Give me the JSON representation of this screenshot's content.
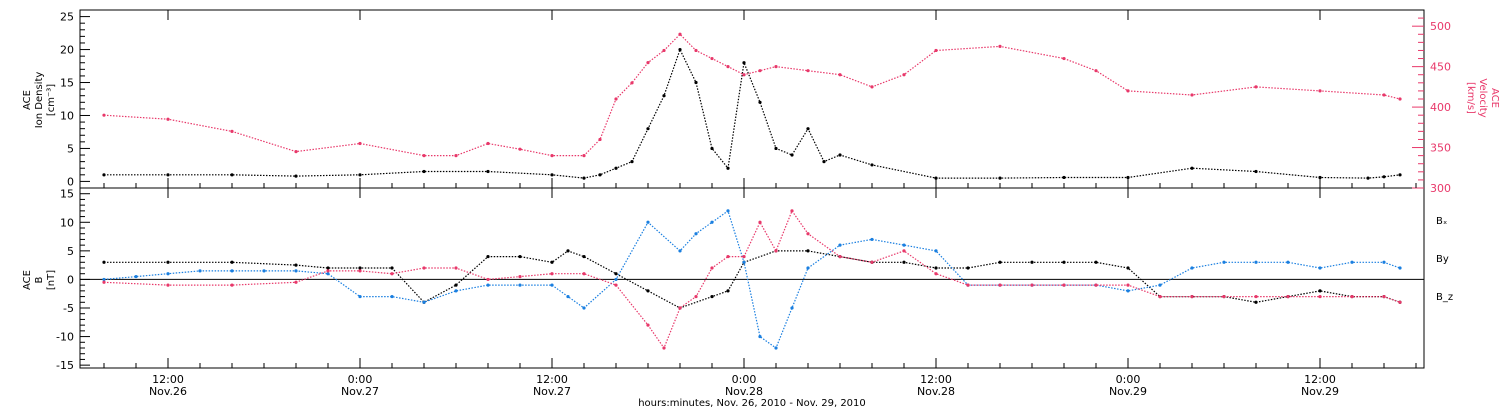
{
  "colors": {
    "density": "#000000",
    "velocity": "#e8386a",
    "bx": "#000000",
    "by": "#1a7fe0",
    "bz": "#e8386a",
    "frame": "#000000"
  },
  "chart_data": [
    {
      "type": "scatter",
      "panel": "top",
      "ylabel_left": [
        "ACE",
        "Ion Density",
        "[cm⁻³]"
      ],
      "ylabel_right": [
        "ACE",
        "Velocity",
        "[km/s]"
      ],
      "ylim_left": [
        -1,
        26
      ],
      "ylim_right": [
        300,
        520
      ],
      "left_ticks": [
        "0",
        "5",
        "10",
        "15",
        "20",
        "25"
      ],
      "right_ticks": [
        "300",
        "350",
        "400",
        "450",
        "500"
      ],
      "x_unit": "hours since Nov.26 00:00",
      "series": [
        {
          "key": "density",
          "axis": "left",
          "x": [
            8,
            12,
            16,
            20,
            24,
            28,
            32,
            36,
            38,
            39,
            40,
            41,
            42,
            43,
            44,
            45,
            46,
            47,
            48,
            49,
            50,
            51,
            52,
            53,
            54,
            56,
            60,
            64,
            68,
            72,
            76,
            80,
            84,
            87,
            88,
            89
          ],
          "y": [
            1.0,
            1.0,
            1.0,
            0.8,
            1.0,
            1.5,
            1.5,
            1.0,
            0.5,
            1.0,
            2.0,
            3.0,
            8.0,
            13.0,
            20.0,
            15.0,
            5.0,
            2.0,
            18.0,
            12.0,
            5.0,
            4.0,
            8.0,
            3.0,
            4.0,
            2.5,
            0.5,
            0.5,
            0.6,
            0.6,
            2.0,
            1.5,
            0.6,
            0.5,
            0.7,
            1.0
          ]
        },
        {
          "key": "velocity",
          "axis": "right",
          "x": [
            8,
            12,
            16,
            20,
            24,
            28,
            30,
            32,
            34,
            36,
            38,
            39,
            40,
            41,
            42,
            43,
            44,
            45,
            46,
            47,
            48,
            49,
            50,
            52,
            54,
            56,
            58,
            60,
            64,
            68,
            70,
            72,
            76,
            80,
            84,
            88,
            89
          ],
          "y": [
            390,
            385,
            370,
            345,
            355,
            340,
            340,
            355,
            348,
            340,
            340,
            360,
            410,
            430,
            455,
            470,
            490,
            470,
            460,
            450,
            440,
            445,
            450,
            445,
            440,
            425,
            440,
            470,
            475,
            460,
            445,
            420,
            415,
            425,
            420,
            415,
            410
          ]
        }
      ]
    },
    {
      "type": "scatter",
      "panel": "bottom",
      "ylabel_left": [
        "ACE",
        "B",
        "[nT]"
      ],
      "ylim": [
        -15.5,
        16
      ],
      "left_ticks": [
        "-15",
        "-10",
        "-5",
        "0",
        "5",
        "10",
        "15"
      ],
      "x_unit": "hours since Nov.26 00:00",
      "x_ticks": [
        "12:00",
        "0:00",
        "12:00",
        "0:00",
        "12:00",
        "0:00",
        "12:00"
      ],
      "x_ticks_date": [
        "Nov.26",
        "Nov.27",
        "Nov.27",
        "Nov.28",
        "Nov.28",
        "Nov.29",
        "Nov.29"
      ],
      "x_tick_values": [
        12,
        24,
        36,
        48,
        60,
        72,
        84
      ],
      "xlim": [
        6.5,
        90.5
      ],
      "xlabel": "hours:minutes, Nov. 26, 2010 - Nov. 29, 2010",
      "series": [
        {
          "key": "bx",
          "name": "Bₓ",
          "x": [
            8,
            12,
            16,
            20,
            22,
            24,
            26,
            28,
            30,
            32,
            34,
            36,
            37,
            38,
            40,
            42,
            44,
            46,
            47,
            48,
            50,
            52,
            54,
            56,
            58,
            60,
            62,
            64,
            66,
            68,
            70,
            72,
            74,
            76,
            78,
            80,
            82,
            84,
            86,
            88,
            89
          ],
          "y": [
            3,
            3,
            3,
            2.5,
            2,
            2,
            2,
            -4,
            -1,
            4,
            4,
            3,
            5,
            4,
            1,
            -2,
            -5,
            -3,
            -2,
            3,
            5,
            5,
            4,
            3,
            3,
            2,
            2,
            3,
            3,
            3,
            3,
            2,
            -3,
            -3,
            -3,
            -4,
            -3,
            -2,
            -3,
            -3,
            -4
          ]
        },
        {
          "key": "by",
          "name": "By",
          "x": [
            8,
            10,
            12,
            14,
            16,
            18,
            20,
            22,
            24,
            26,
            28,
            30,
            32,
            34,
            36,
            37,
            38,
            40,
            42,
            44,
            45,
            46,
            47,
            48,
            49,
            50,
            51,
            52,
            54,
            56,
            58,
            60,
            62,
            64,
            66,
            68,
            70,
            72,
            74,
            76,
            78,
            80,
            82,
            84,
            86,
            88,
            89
          ],
          "y": [
            0,
            0.5,
            1.0,
            1.5,
            1.5,
            1.5,
            1.5,
            1.0,
            -3,
            -3,
            -4,
            -2,
            -1,
            -1,
            -1,
            -3,
            -5,
            0,
            10,
            5,
            8,
            10,
            12,
            3,
            -10,
            -12,
            -5,
            2,
            6,
            7,
            6,
            5,
            -1,
            -1,
            -1,
            -1,
            -1,
            -2,
            -1,
            2,
            3,
            3,
            3,
            2,
            3,
            3,
            2
          ]
        },
        {
          "key": "bz",
          "name": "B_z",
          "x": [
            8,
            12,
            16,
            20,
            22,
            24,
            26,
            28,
            30,
            32,
            34,
            36,
            38,
            40,
            42,
            43,
            44,
            45,
            46,
            47,
            48,
            49,
            50,
            51,
            52,
            54,
            56,
            58,
            60,
            62,
            64,
            66,
            68,
            70,
            72,
            74,
            76,
            78,
            80,
            82,
            84,
            86,
            88,
            89
          ],
          "y": [
            -0.5,
            -1,
            -1,
            -0.5,
            1.5,
            1.5,
            1,
            2,
            2,
            0,
            0.5,
            1,
            1,
            -1,
            -8,
            -12,
            -5,
            -3,
            2,
            4,
            4,
            10,
            5,
            12,
            8,
            4,
            3,
            5,
            1,
            -1,
            -1,
            -1,
            -1,
            -1,
            -1,
            -3,
            -3,
            -3,
            -3,
            -3,
            -3,
            -3,
            -3,
            -4
          ]
        }
      ]
    }
  ]
}
